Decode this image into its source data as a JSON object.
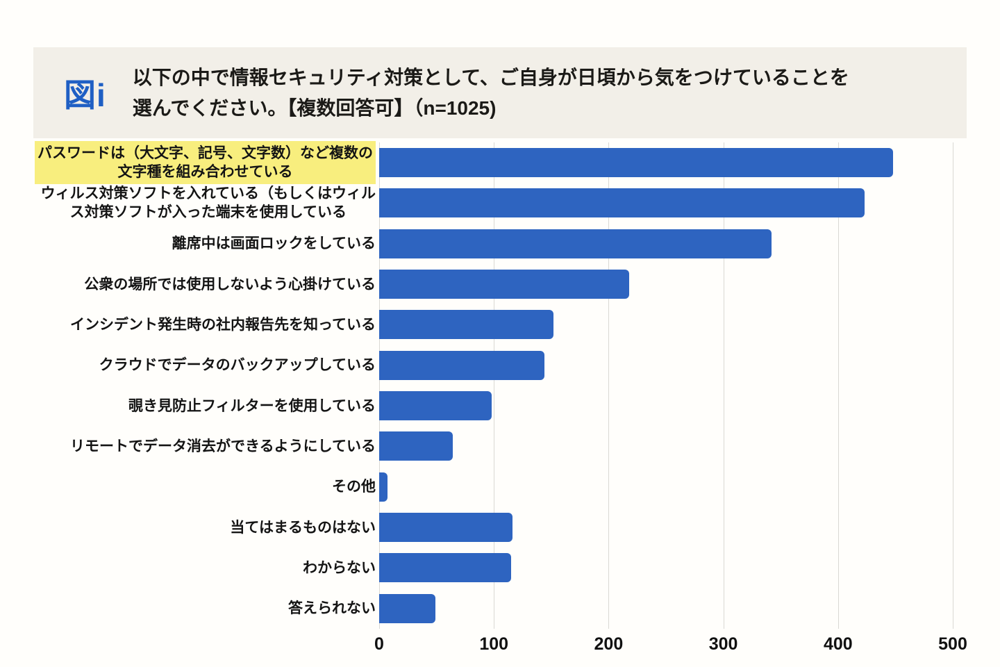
{
  "header": {
    "figure_label": "図i",
    "title": "以下の中で情報セキュリティ対策として、ご自身が日頃から気をつけていることを\n選んでください。【複数回答可】（n=1025)"
  },
  "colors": {
    "bar": "#2e64c0",
    "highlight": "#f8ee7e",
    "band_bg": "#f2efe8",
    "accent_blue": "#1f5fc4",
    "gridline": "#d9d8d4"
  },
  "chart_data": {
    "type": "bar",
    "orientation": "horizontal",
    "title": "以下の中で情報セキュリティ対策として、ご自身が日頃から気をつけていることを選んでください。【複数回答可】（n=1025)",
    "categories": [
      "パスワードは（大文字、記号、文字数）など複数の\n文字種を組み合わせている",
      "ウィルス対策ソフトを入れている（もしくはウィル\nス対策ソフトが入った端末を使用している",
      "離席中は画面ロックをしている",
      "公衆の場所では使用しないよう心掛けている",
      "インシデント発生時の社内報告先を知っている",
      "クラウドでデータのバックアップしている",
      "覗き見防止フィルターを使用している",
      "リモートでデータ消去ができるようにしている",
      "その他",
      "当てはまるものはない",
      "わからない",
      "答えられない"
    ],
    "values": [
      448,
      423,
      342,
      218,
      152,
      144,
      98,
      64,
      7,
      116,
      115,
      49
    ],
    "highlighted_category_index": 0,
    "x_ticks": [
      0,
      100,
      200,
      300,
      400,
      500
    ],
    "xlim": [
      0,
      500
    ],
    "grid": true,
    "legend": "none"
  }
}
